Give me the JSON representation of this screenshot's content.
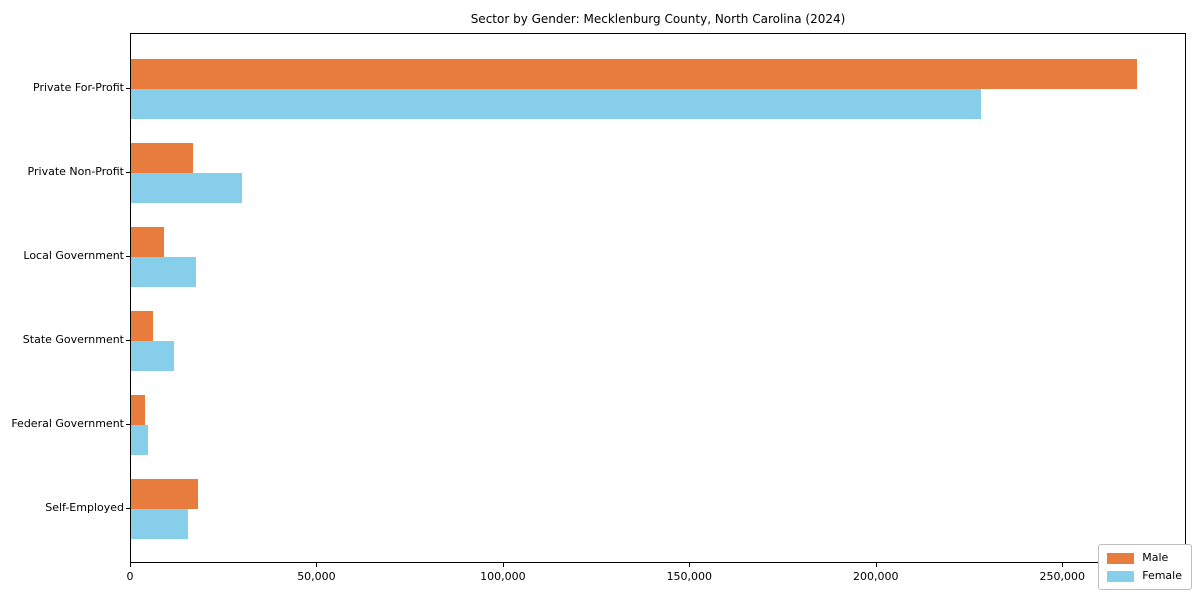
{
  "chart_data": {
    "type": "bar",
    "orientation": "horizontal",
    "title": "Sector by Gender: Mecklenburg County, North Carolina (2024)",
    "categories": [
      "Private For-Profit",
      "Private Non-Profit",
      "Local Government",
      "State Government",
      "Federal Government",
      "Self-Employed"
    ],
    "series": [
      {
        "name": "Male",
        "color": "#E87C3C",
        "values": [
          269700,
          16600,
          8900,
          5800,
          3800,
          17900
        ]
      },
      {
        "name": "Female",
        "color": "#87CEEB",
        "values": [
          227900,
          29700,
          17400,
          11400,
          4500,
          15200
        ]
      }
    ],
    "xlabel": "",
    "ylabel": "",
    "xlim": [
      0,
      283200
    ],
    "xticks": [
      0,
      50000,
      100000,
      150000,
      200000,
      250000
    ],
    "xtick_labels": [
      "0",
      "50,000",
      "100,000",
      "150,000",
      "200,000",
      "250,000"
    ],
    "grid": false,
    "legend_position": "lower right",
    "legend_entries": [
      "Male",
      "Female"
    ]
  }
}
